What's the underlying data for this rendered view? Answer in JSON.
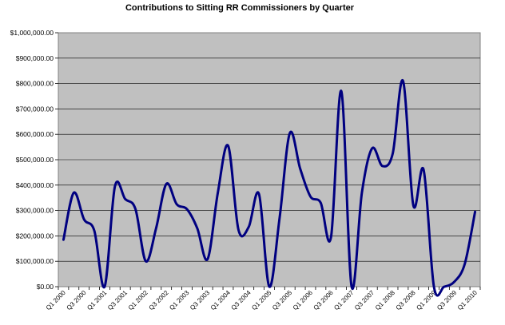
{
  "chart_data": {
    "type": "line",
    "title": "Contributions to Sitting RR Commissioners by Quarter",
    "xlabel": "",
    "ylabel": "",
    "ylim": [
      0,
      1000000
    ],
    "y_tick_step": 100000,
    "y_tick_labels": [
      "$0.00",
      "$100,000.00",
      "$200,000.00",
      "$300,000.00",
      "$400,000.00",
      "$500,000.00",
      "$600,000.00",
      "$700,000.00",
      "$800,000.00",
      "$900,000.00",
      "$1,000,000.00"
    ],
    "grid": true,
    "legend": "none",
    "categories": [
      "Q1 2000",
      "Q2 2000",
      "Q3 2000",
      "Q4 2000",
      "Q1 2001",
      "Q2 2001",
      "Q3 2001",
      "Q4 2001",
      "Q1 2002",
      "Q2 2002",
      "Q3 2002",
      "Q4 2002",
      "Q1 2003",
      "Q2 2003",
      "Q3 2003",
      "Q4 2003",
      "Q1 2004",
      "Q2 2004",
      "Q3 2004",
      "Q4 2004",
      "Q1 2005",
      "Q2 2005",
      "Q3 2005",
      "Q4 2005",
      "Q1 2006",
      "Q2 2006",
      "Q3 2006",
      "Q4 2006",
      "Q1 2007",
      "Q2 2007",
      "Q3 2007",
      "Q4 2007",
      "Q1 2008",
      "Q2 2008",
      "Q3 2008",
      "Q4 2008",
      "Q1 2009",
      "Q2 2009",
      "Q3 2009",
      "Q4 2009",
      "Q1 2010"
    ],
    "shown_tick_labels": [
      "Q1 2000",
      "Q3 2000",
      "Q1 2001",
      "Q3 2001",
      "Q1 2002",
      "Q3 2002",
      "Q1 2003",
      "Q3 2003",
      "Q1 2004",
      "Q3 2004",
      "Q1 2005",
      "Q3 2005",
      "Q1 2006",
      "Q3 2006",
      "Q1 2007",
      "Q3 2007",
      "Q1 2008",
      "Q3 2008",
      "Q1 2009",
      "Q3 2009",
      "Q1 2010"
    ],
    "series": [
      {
        "color": "#000080",
        "values": [
          185000,
          370000,
          265000,
          220000,
          0,
          395000,
          345000,
          305000,
          100000,
          230000,
          405000,
          325000,
          305000,
          230000,
          108000,
          370000,
          555000,
          225000,
          235000,
          365000,
          0,
          270000,
          605000,
          465000,
          355000,
          330000,
          195000,
          770000,
          0,
          370000,
          545000,
          475000,
          525000,
          810000,
          320000,
          460000,
          0,
          0,
          20000,
          90000,
          295000
        ]
      }
    ]
  },
  "colors": {
    "plot_background": "#c0c0c0",
    "grid": "#000000",
    "line": "#000080"
  }
}
